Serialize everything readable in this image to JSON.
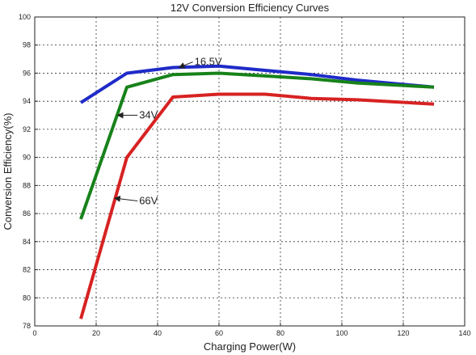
{
  "chart_data": {
    "type": "line",
    "title": "12V Conversion Efficiency Curves",
    "xlabel": "Charging Power(W)",
    "ylabel": "Conversion Efficiency(%)",
    "xlim": [
      0,
      140
    ],
    "ylim": [
      78,
      100
    ],
    "xticks": [
      0,
      20,
      40,
      60,
      80,
      100,
      120,
      140
    ],
    "yticks": [
      78,
      80,
      82,
      84,
      86,
      88,
      90,
      92,
      94,
      96,
      98,
      100
    ],
    "grid": true,
    "series": [
      {
        "name": "16.5V",
        "color": "#1f2bc8",
        "x": [
          15,
          30,
          45,
          60,
          75,
          90,
          105,
          130
        ],
        "y": [
          93.9,
          96.0,
          96.4,
          96.5,
          96.2,
          95.9,
          95.5,
          95.0
        ]
      },
      {
        "name": "34V",
        "color": "#17821a",
        "x": [
          15,
          30,
          45,
          60,
          75,
          90,
          105,
          130
        ],
        "y": [
          85.6,
          95.0,
          95.9,
          96.0,
          95.8,
          95.6,
          95.3,
          95.0
        ]
      },
      {
        "name": "66V",
        "color": "#d72222",
        "x": [
          15,
          30,
          45,
          60,
          75,
          90,
          105,
          130
        ],
        "y": [
          78.5,
          90.0,
          94.3,
          94.5,
          94.5,
          94.2,
          94.1,
          93.8
        ]
      }
    ],
    "annotations": [
      {
        "text": "16.5V",
        "series": "16.5V",
        "arrow_to": [
          47,
          96.4
        ],
        "text_at": [
          52,
          96.8
        ]
      },
      {
        "text": "34V",
        "series": "34V",
        "arrow_to": [
          27,
          93.0
        ],
        "text_at": [
          34,
          93.0
        ]
      },
      {
        "text": "66V",
        "series": "66V",
        "arrow_to": [
          26,
          87.1
        ],
        "text_at": [
          34,
          86.9
        ]
      }
    ]
  }
}
